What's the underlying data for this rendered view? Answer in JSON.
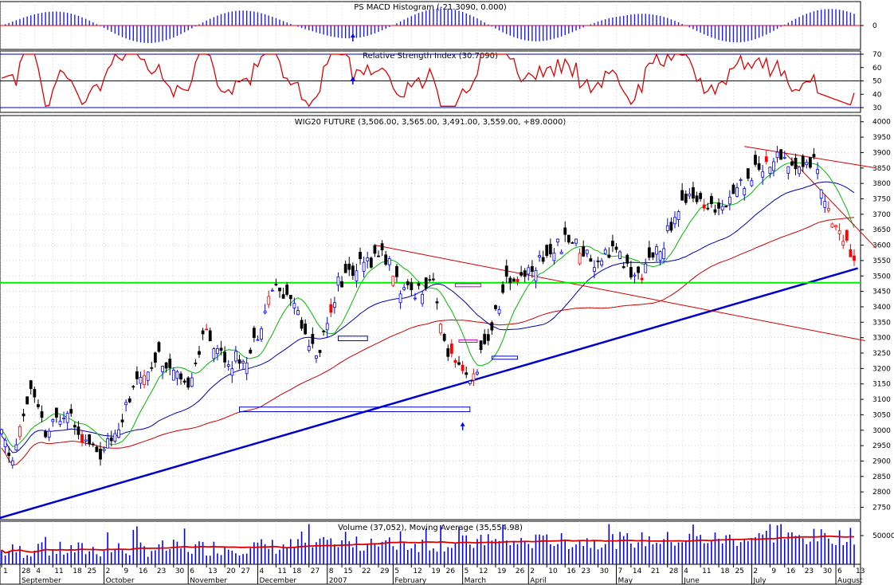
{
  "colors": {
    "background": "#ffffff",
    "frame": "#000000",
    "grid": "#bbbbbb",
    "macd_bar": "#1a1aff",
    "zero_line": "#ff0000",
    "rsi_line": "#e00000",
    "rsi_level": "#0000aa",
    "candle_up": "#0000ff",
    "candle_down": "#000000",
    "candle_hl_up": "#2020ff",
    "candle_hl_down": "#ff0000",
    "sma_short": "#00bb00",
    "sma_mid": "#0000aa",
    "sma_long": "#cc0000",
    "trendline": "#0000cc",
    "support": "#00ee00",
    "channel": "#cc0000",
    "box_blue": "#0000cc",
    "box_magenta": "#cc00cc",
    "volume_bar": "#0000ff",
    "volume_ma": "#dd0000",
    "arrow": "#0000ff"
  },
  "chart_data": [
    {
      "type": "bar",
      "title": "PS MACD Histogram (-21.3090, 0.000)",
      "yticks": [
        {
          "v": 0,
          "label": "0"
        }
      ],
      "generator": {
        "n": 234,
        "seed": 3
      }
    },
    {
      "type": "line",
      "title": "Relative Strength Index (30.7090)",
      "ylim": [
        30,
        70
      ],
      "levels": [
        30,
        50,
        70
      ],
      "yticks": [
        30,
        40,
        50,
        60,
        70
      ]
    },
    {
      "type": "candlestick",
      "title": "WIG20 FUTURE (3,506.00, 3,565.00, 3,491.00, 3,559.00, +89.0000)",
      "ylim": [
        2710,
        4020
      ],
      "yticks": [
        2750,
        2800,
        2850,
        2900,
        2950,
        3000,
        3050,
        3100,
        3150,
        3200,
        3250,
        3300,
        3350,
        3400,
        3450,
        3500,
        3550,
        3600,
        3650,
        3700,
        3750,
        3800,
        3850,
        3900,
        3950,
        4000
      ],
      "anchors": [
        [
          0,
          2980
        ],
        [
          3,
          2900
        ],
        [
          8,
          3140
        ],
        [
          12,
          2980
        ],
        [
          18,
          3080
        ],
        [
          23,
          2960
        ],
        [
          28,
          2920
        ],
        [
          33,
          3050
        ],
        [
          38,
          3170
        ],
        [
          43,
          3250
        ],
        [
          50,
          3130
        ],
        [
          56,
          3320
        ],
        [
          62,
          3220
        ],
        [
          68,
          3250
        ],
        [
          74,
          3460
        ],
        [
          80,
          3420
        ],
        [
          86,
          3230
        ],
        [
          92,
          3480
        ],
        [
          97,
          3520
        ],
        [
          104,
          3580
        ],
        [
          110,
          3440
        ],
        [
          116,
          3470
        ],
        [
          118,
          3510
        ],
        [
          120,
          3320
        ],
        [
          124,
          3200
        ],
        [
          128,
          3150
        ],
        [
          133,
          3300
        ],
        [
          138,
          3480
        ],
        [
          143,
          3510
        ],
        [
          149,
          3570
        ],
        [
          155,
          3620
        ],
        [
          162,
          3550
        ],
        [
          167,
          3590
        ],
        [
          173,
          3490
        ],
        [
          178,
          3550
        ],
        [
          183,
          3660
        ],
        [
          188,
          3780
        ],
        [
          193,
          3700
        ],
        [
          198,
          3750
        ],
        [
          204,
          3820
        ],
        [
          208,
          3860
        ],
        [
          213,
          3890
        ],
        [
          217,
          3850
        ],
        [
          222,
          3870
        ],
        [
          226,
          3720
        ],
        [
          230,
          3620
        ],
        [
          233,
          3530
        ]
      ],
      "sma_short_period": 10,
      "sma_mid_period": 30,
      "sma_long_period": 60,
      "trendline": [
        [
          -5,
          2700
        ],
        [
          234,
          3525
        ]
      ],
      "support_level": 3478,
      "channel_top": [
        [
          102,
          3600
        ],
        [
          236,
          3290
        ]
      ],
      "resistance": [
        [
          203,
          3920
        ],
        [
          239,
          3850
        ]
      ],
      "red_fan": [
        [
          214,
          3900
        ],
        [
          239,
          3590
        ]
      ],
      "boxes_blue": [
        [
          65,
          3060,
          128,
          3075
        ],
        [
          92,
          3290,
          100,
          3305
        ],
        [
          134,
          3230,
          141,
          3240
        ]
      ],
      "boxes_magenta": [
        [
          124,
          3465,
          131,
          3475
        ],
        [
          125,
          3285,
          130,
          3293
        ]
      ],
      "arrows": [
        {
          "i": 126,
          "v": 3000
        }
      ]
    },
    {
      "type": "bar",
      "title": "Volume (37,052), Moving Average (35,554.98)",
      "yticks": [
        {
          "v": 50000,
          "label": "50000"
        }
      ],
      "ylim": [
        0,
        75000
      ],
      "ma_period": 40,
      "generator": {
        "n": 234,
        "seed": 7
      }
    }
  ],
  "x_axis": {
    "days": [
      "1",
      "28",
      "4",
      "11",
      "18",
      "25",
      "2",
      "9",
      "16",
      "23",
      "30",
      "6",
      "13",
      "20",
      "27",
      "4",
      "11",
      "18",
      "27",
      "8",
      "15",
      "22",
      "29",
      "5",
      "12",
      "19",
      "26",
      "5",
      "12",
      "19",
      "26",
      "2",
      "10",
      "16",
      "23",
      "30",
      "7",
      "14",
      "21",
      "28",
      "4",
      "11",
      "18",
      "25",
      "2",
      "9",
      "16",
      "23",
      "30",
      "6",
      "13"
    ],
    "months": [
      "September",
      "October",
      "November",
      "December",
      "2007",
      "February",
      "March",
      "April",
      "May",
      "June",
      "July",
      "August"
    ]
  }
}
